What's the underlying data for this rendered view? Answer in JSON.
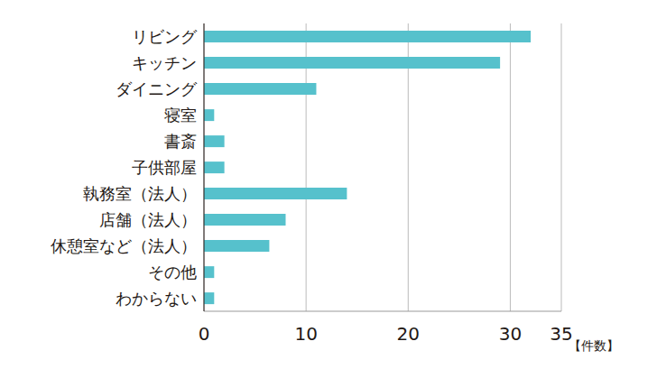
{
  "chart_data": {
    "type": "bar",
    "orientation": "horizontal",
    "categories": [
      "リビング",
      "キッチン",
      "ダイニング",
      "寝室",
      "書斎",
      "子供部屋",
      "執務室（法人）",
      "店舗（法人）",
      "休憩室など（法人）",
      "その他",
      "わからない"
    ],
    "values": [
      32,
      29,
      11,
      1,
      2,
      2,
      14,
      8,
      6.4,
      1,
      1
    ],
    "color": "#56c1cc",
    "x_label": "【件数】",
    "xlim": [
      0,
      35
    ],
    "xticks": [
      0,
      10,
      20,
      30,
      35
    ],
    "grid": true
  }
}
